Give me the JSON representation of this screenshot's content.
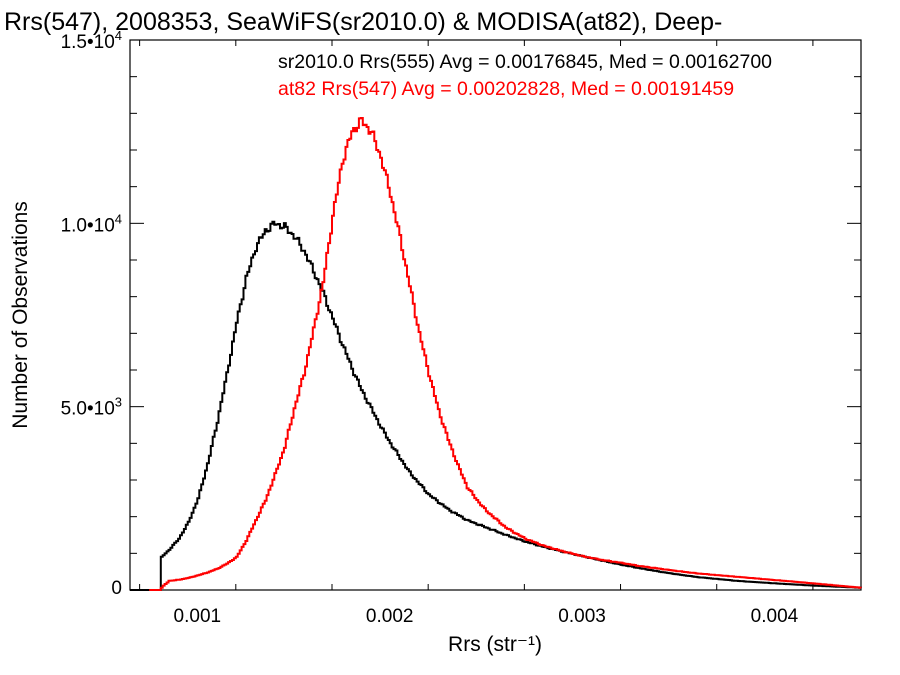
{
  "chart_data": {
    "type": "line",
    "title": "Rrs(547), 2008353, SeaWiFS(sr2010.0) & MODISA(at82), Deep-",
    "xlabel": "Rrs (str⁻¹)",
    "ylabel": "Number of Observations",
    "xlim": [
      0.00065,
      0.00445
    ],
    "ylim": [
      0,
      15000
    ],
    "grid": false,
    "x_ticks": [
      {
        "value": 0.001,
        "label": "0.001"
      },
      {
        "value": 0.002,
        "label": "0.002"
      },
      {
        "value": 0.003,
        "label": "0.003"
      },
      {
        "value": 0.004,
        "label": "0.004"
      }
    ],
    "y_ticks": [
      {
        "value": 0,
        "mantissa": "0",
        "exponent": ""
      },
      {
        "value": 5000,
        "mantissa": "5.0•10",
        "exponent": "3"
      },
      {
        "value": 10000,
        "mantissa": "1.0•10",
        "exponent": "4"
      },
      {
        "value": 15000,
        "mantissa": "1.5•10",
        "exponent": "4"
      }
    ],
    "series": [
      {
        "name": "sr2010.0 Rrs(555) Avg = 0.00176845, Med = 0.00162700",
        "color": "#000000",
        "x": [
          0.00065,
          0.0008,
          0.00081,
          0.00085,
          0.0009,
          0.00095,
          0.001,
          0.00105,
          0.0011,
          0.00115,
          0.0012,
          0.00125,
          0.0013,
          0.00135,
          0.0014,
          0.00145,
          0.0015,
          0.00155,
          0.0016,
          0.00165,
          0.0017,
          0.00175,
          0.0018,
          0.00185,
          0.0019,
          0.00195,
          0.002,
          0.0021,
          0.0022,
          0.0023,
          0.0024,
          0.0025,
          0.0026,
          0.0027,
          0.0028,
          0.0029,
          0.003,
          0.0031,
          0.0032,
          0.0033,
          0.0034,
          0.0035,
          0.0036,
          0.0038,
          0.004,
          0.0042,
          0.00445
        ],
        "y": [
          0,
          0,
          900,
          1100,
          1400,
          1850,
          2500,
          3450,
          4600,
          5900,
          7300,
          8500,
          9350,
          9800,
          10000,
          9900,
          9650,
          9250,
          8700,
          8100,
          7400,
          6700,
          6050,
          5450,
          4950,
          4450,
          4000,
          3200,
          2600,
          2200,
          1900,
          1700,
          1500,
          1320,
          1170,
          1040,
          920,
          800,
          690,
          590,
          500,
          420,
          350,
          250,
          180,
          120,
          60
        ]
      },
      {
        "name": "at82 Rrs(547) Avg = 0.00202828, Med = 0.00191459",
        "color": "#ff0000",
        "x": [
          0.00075,
          0.0008,
          0.00082,
          0.00085,
          0.0009,
          0.00095,
          0.001,
          0.00105,
          0.0011,
          0.00115,
          0.0012,
          0.00125,
          0.0013,
          0.00135,
          0.0014,
          0.00145,
          0.0015,
          0.00155,
          0.0016,
          0.00165,
          0.0017,
          0.00175,
          0.0018,
          0.00185,
          0.0019,
          0.00195,
          0.002,
          0.00205,
          0.0021,
          0.00215,
          0.0022,
          0.00225,
          0.0023,
          0.00235,
          0.0024,
          0.00245,
          0.0025,
          0.0026,
          0.0027,
          0.0028,
          0.0029,
          0.003,
          0.0031,
          0.0032,
          0.0033,
          0.0034,
          0.0035,
          0.0036,
          0.0038,
          0.004,
          0.0042,
          0.00445
        ],
        "y": [
          0,
          0,
          120,
          250,
          280,
          330,
          400,
          480,
          580,
          720,
          900,
          1350,
          1900,
          2450,
          3150,
          3900,
          4950,
          5900,
          7100,
          8400,
          10200,
          11700,
          12500,
          12800,
          12500,
          11800,
          10800,
          9600,
          8300,
          7000,
          5900,
          4900,
          4100,
          3400,
          2800,
          2450,
          2150,
          1700,
          1400,
          1200,
          1050,
          920,
          820,
          740,
          650,
          580,
          510,
          450,
          360,
          270,
          180,
          60
        ]
      }
    ]
  }
}
